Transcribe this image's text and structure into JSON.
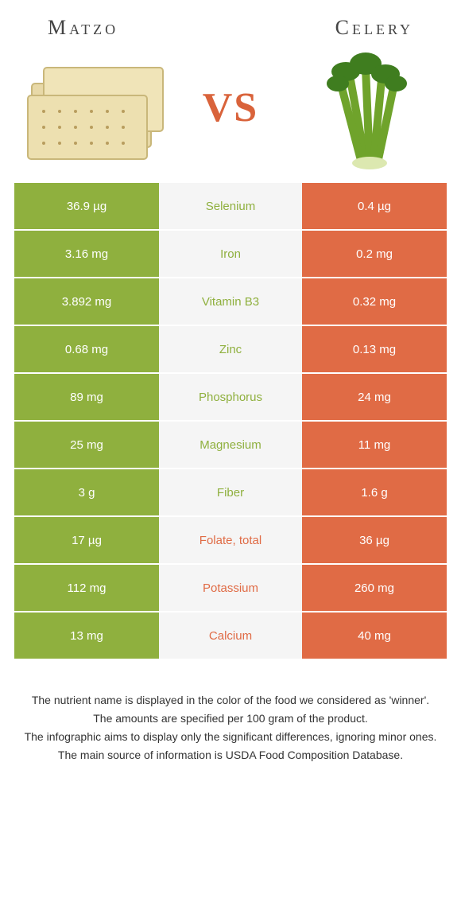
{
  "header": {
    "left_title": "Matzo",
    "right_title": "Celery",
    "vs": "VS"
  },
  "colors": {
    "left_bg": "#8fb03e",
    "right_bg": "#e06b45",
    "mid_bg": "#f5f5f5",
    "left_winner_text": "#8fb03e",
    "right_winner_text": "#e06b45",
    "cell_text": "#ffffff"
  },
  "rows": [
    {
      "left": "36.9 µg",
      "nutrient": "Selenium",
      "right": "0.4 µg",
      "winner": "left"
    },
    {
      "left": "3.16 mg",
      "nutrient": "Iron",
      "right": "0.2 mg",
      "winner": "left"
    },
    {
      "left": "3.892 mg",
      "nutrient": "Vitamin B3",
      "right": "0.32 mg",
      "winner": "left"
    },
    {
      "left": "0.68 mg",
      "nutrient": "Zinc",
      "right": "0.13 mg",
      "winner": "left"
    },
    {
      "left": "89 mg",
      "nutrient": "Phosphorus",
      "right": "24 mg",
      "winner": "left"
    },
    {
      "left": "25 mg",
      "nutrient": "Magnesium",
      "right": "11 mg",
      "winner": "left"
    },
    {
      "left": "3 g",
      "nutrient": "Fiber",
      "right": "1.6 g",
      "winner": "left"
    },
    {
      "left": "17 µg",
      "nutrient": "Folate, total",
      "right": "36 µg",
      "winner": "right"
    },
    {
      "left": "112 mg",
      "nutrient": "Potassium",
      "right": "260 mg",
      "winner": "right"
    },
    {
      "left": "13 mg",
      "nutrient": "Calcium",
      "right": "40 mg",
      "winner": "right"
    }
  ],
  "footnotes": [
    "The nutrient name is displayed in the color of the food we considered as 'winner'.",
    "The amounts are specified per 100 gram of the product.",
    "The infographic aims to display only the significant differences, ignoring minor ones.",
    "The main source of information is USDA Food Composition Database."
  ]
}
